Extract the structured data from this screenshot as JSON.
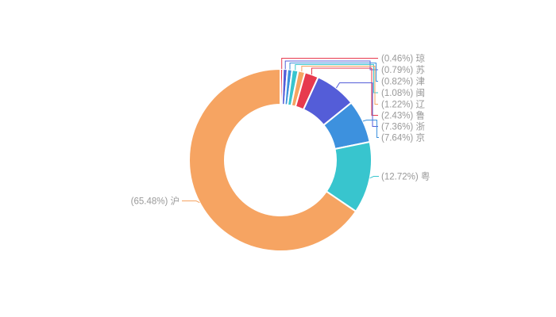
{
  "page": {
    "background": "#ffffff"
  },
  "chart_data": {
    "type": "pie",
    "subtype": "donut",
    "title": "",
    "legend": "none",
    "start_angle_deg": 0,
    "direction": "clockwise",
    "label_format": "({percent}%) {name}",
    "label_color": "#999999",
    "slice_border_color": "#ffffff",
    "palette": [
      "#e73a4e",
      "#545dd8",
      "#3d91de",
      "#38c5ce",
      "#f6a462"
    ],
    "items": [
      {
        "name": "琼",
        "percent": 0.46,
        "color": "#e73a4e",
        "label": "(0.46%) 琼"
      },
      {
        "name": "苏",
        "percent": 0.79,
        "color": "#545dd8",
        "label": "(0.79%) 苏"
      },
      {
        "name": "津",
        "percent": 0.82,
        "color": "#3d91de",
        "label": "(0.82%) 津"
      },
      {
        "name": "闽",
        "percent": 1.08,
        "color": "#38c5ce",
        "label": "(1.08%) 闽"
      },
      {
        "name": "辽",
        "percent": 1.22,
        "color": "#f6a462",
        "label": "(1.22%) 辽"
      },
      {
        "name": "鲁",
        "percent": 2.43,
        "color": "#e73a4e",
        "label": "(2.43%) 鲁"
      },
      {
        "name": "浙",
        "percent": 7.36,
        "color": "#545dd8",
        "label": "(7.36%) 浙"
      },
      {
        "name": "京",
        "percent": 7.64,
        "color": "#3d91de",
        "label": "(7.64%) 京"
      },
      {
        "name": "粤",
        "percent": 12.72,
        "color": "#38c5ce",
        "label": "(12.72%) 粤"
      },
      {
        "name": "沪",
        "percent": 65.48,
        "color": "#f6a462",
        "label": "(65.48%) 沪"
      }
    ]
  }
}
